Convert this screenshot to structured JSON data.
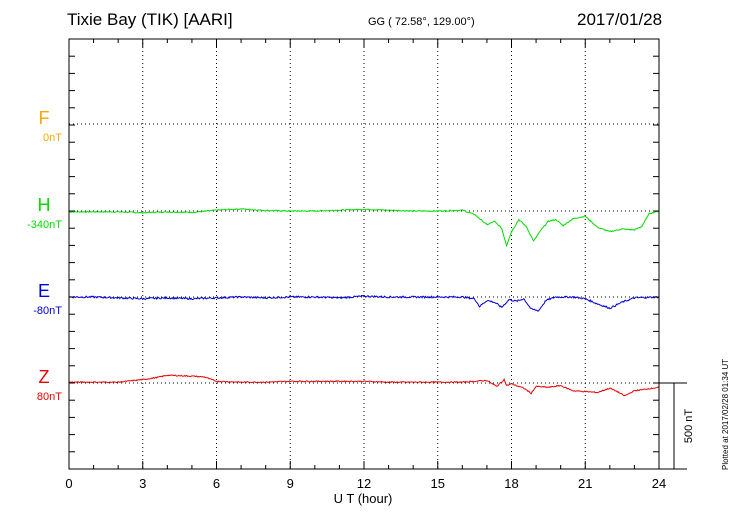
{
  "header": {
    "station": "Tixie Bay (TIK)  [AARI]",
    "coords": "GG ( 72.58°, 129.00°)",
    "date": "2017/01/28"
  },
  "plotted_note": "Plotted at 2017/02/28 01:34 UT",
  "scale_bar_label": "500 nT",
  "colors": {
    "F": "#ffa500",
    "H": "#00dd00",
    "E": "#0000dd",
    "Z": "#ee0000",
    "grid": "#000000"
  },
  "chart_data": {
    "type": "line",
    "xlabel": "U T (hour)",
    "xlim": [
      0,
      24
    ],
    "xticks": [
      0,
      3,
      6,
      9,
      12,
      15,
      18,
      21,
      24
    ],
    "grid": true,
    "series": [
      {
        "name": "F",
        "baseline_label": "0nT",
        "color": "#ffa500",
        "x": [],
        "y": []
      },
      {
        "name": "H",
        "baseline_label": "-340nT",
        "color": "#00dd00",
        "x": [
          0,
          1,
          2,
          3,
          4,
          5,
          6,
          7,
          8,
          9,
          10,
          11,
          12,
          13,
          14,
          15,
          16,
          16.5,
          17,
          17.3,
          17.6,
          17.8,
          18,
          18.3,
          18.6,
          18.9,
          19.2,
          19.5,
          19.8,
          20.1,
          20.5,
          21,
          21.5,
          22,
          22.5,
          23,
          23.3,
          23.6,
          24
        ],
        "y": [
          -5,
          -5,
          -5,
          -10,
          -5,
          -8,
          5,
          12,
          3,
          0,
          0,
          5,
          10,
          5,
          0,
          0,
          5,
          -20,
          -80,
          -60,
          -100,
          -200,
          -120,
          -50,
          -90,
          -175,
          -110,
          -60,
          -50,
          -85,
          -45,
          -30,
          -95,
          -120,
          -105,
          -110,
          -90,
          -15,
          0
        ]
      },
      {
        "name": "E",
        "baseline_label": "-80nT",
        "color": "#0000dd",
        "x": [
          0,
          1,
          2,
          3,
          4,
          5,
          6,
          7,
          8,
          9,
          10,
          11,
          12,
          13,
          14,
          15,
          16,
          16.5,
          16.7,
          17,
          17.3,
          17.6,
          17.9,
          18.2,
          18.5,
          18.8,
          19.1,
          19.4,
          19.8,
          20.5,
          21,
          21.5,
          22,
          22.5,
          23,
          24
        ],
        "y": [
          0,
          0,
          -5,
          -10,
          -5,
          -10,
          -5,
          0,
          -5,
          0,
          0,
          -5,
          5,
          0,
          0,
          0,
          0,
          -10,
          -55,
          -20,
          -30,
          -60,
          -15,
          -25,
          -10,
          -70,
          -80,
          -20,
          0,
          0,
          -10,
          -40,
          -65,
          -30,
          -5,
          0
        ]
      },
      {
        "name": "Z",
        "baseline_label": "80nT",
        "color": "#ee0000",
        "x": [
          0,
          1,
          2,
          3,
          3.5,
          4,
          5,
          5.5,
          6,
          7,
          8,
          9,
          10,
          11,
          12,
          13,
          14,
          15,
          16,
          16.5,
          17,
          17.4,
          17.7,
          17.8,
          18,
          18.5,
          18.8,
          19,
          19.5,
          20,
          20.5,
          21,
          21.5,
          22,
          22.3,
          22.6,
          23,
          23.5,
          24
        ],
        "y": [
          5,
          5,
          5,
          20,
          30,
          45,
          40,
          35,
          10,
          5,
          5,
          10,
          10,
          10,
          10,
          5,
          5,
          5,
          5,
          10,
          15,
          -20,
          20,
          -15,
          -5,
          -30,
          -60,
          -20,
          -25,
          -15,
          -45,
          -50,
          -55,
          -30,
          -50,
          -75,
          -45,
          -35,
          -25
        ]
      },
      {
        "name": "Z-baseline",
        "x": [],
        "y": []
      }
    ],
    "ylim_nT_per_panel": 800,
    "scale_bar_nT": 500
  }
}
